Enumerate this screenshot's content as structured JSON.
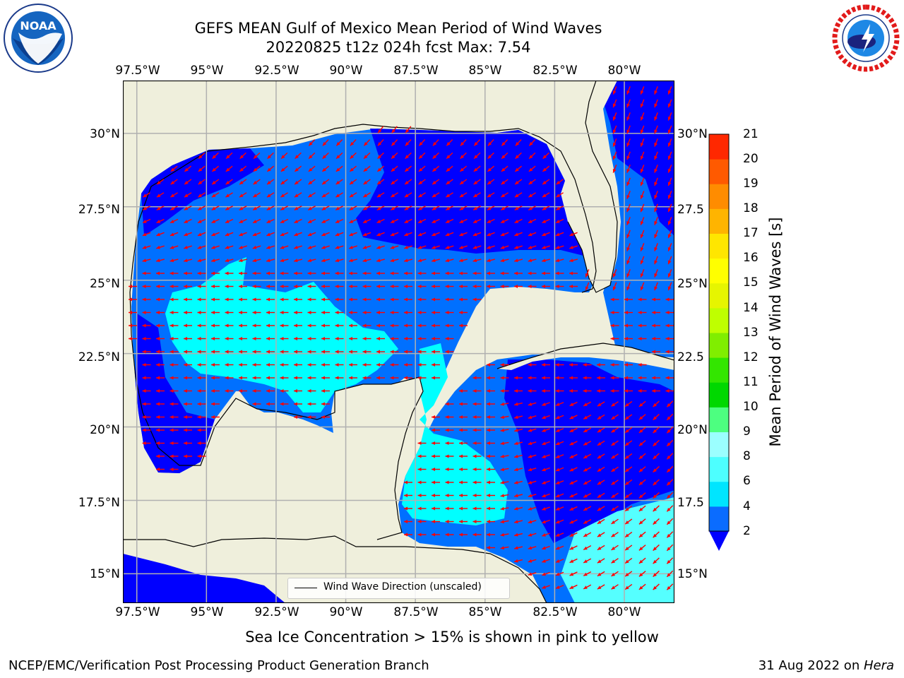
{
  "title": {
    "line1": "GEFS MEAN Gulf of Mexico Mean Period of Wind Waves",
    "line2": "20220825 t12z 024h fcst   Max: 7.54"
  },
  "logos": {
    "left": {
      "text": "NOAA",
      "ring_text": "NATIONAL OCEANIC AND ATMOSPHERIC ADMINISTRATION · U.S. DEPARTMENT OF COMMERCE",
      "icon": "noaa-logo"
    },
    "right": {
      "ring_text": "NATIONAL WEATHER SERVICE",
      "icon": "nws-logo"
    }
  },
  "axes": {
    "lon_ticks": [
      "97.5°W",
      "95°W",
      "92.5°W",
      "90°W",
      "87.5°W",
      "85°W",
      "82.5°W",
      "80°W"
    ],
    "lon_values": [
      -97.5,
      -95,
      -92.5,
      -90,
      -87.5,
      -85,
      -82.5,
      -80
    ],
    "lat_ticks_left": [
      "30°N",
      "27.5°N",
      "25°N",
      "22.5°N",
      "20°N",
      "17.5°N",
      "15°N"
    ],
    "lat_ticks_right": [
      "30°N",
      "27.5",
      "25°N",
      "22.5",
      "20°N",
      "17.5",
      "15°N"
    ],
    "lat_values": [
      30,
      27.5,
      25,
      22.5,
      20,
      17.5,
      15
    ],
    "lon_range": [
      -98,
      -78.2
    ],
    "lat_range": [
      14,
      31.8
    ],
    "grid": true
  },
  "colorbar": {
    "label": "Mean Period of Wind Waves [s]",
    "ticks": [
      "21",
      "20",
      "19",
      "18",
      "17",
      "16",
      "15",
      "14",
      "13",
      "12",
      "11",
      "10",
      "9",
      "8",
      "6",
      "4",
      "2"
    ],
    "levels": [
      2,
      4,
      6,
      8,
      9,
      10,
      11,
      12,
      13,
      14,
      15,
      16,
      17,
      18,
      19,
      20,
      21
    ],
    "colors": [
      "#0a6cff",
      "#00e5ff",
      "#4dffff",
      "#9bffff",
      "#4dff80",
      "#00d800",
      "#33e600",
      "#80ee00",
      "#bfff00",
      "#e6f500",
      "#ffff00",
      "#ffe600",
      "#ffb400",
      "#ff8c00",
      "#ff5a00",
      "#ff2800"
    ],
    "under_color": "#0000ff",
    "extend": "min"
  },
  "map_colors": {
    "land": "#efefdc",
    "coast": "#000000",
    "grid": "#b0b0b0",
    "arrow": "#ff0000",
    "level_2_4": "#0070ff",
    "level_under_2": "#0000ff",
    "level_4_6": "#00ffff",
    "level_6_8": "#55ffff"
  },
  "legend": {
    "label": "Wind Wave Direction (unscaled)"
  },
  "caption": "Sea Ice Concentration > 15% is shown in pink to yellow",
  "footer": {
    "left": "NCEP/EMC/Verification Post Processing Product Generation Branch",
    "right_date": "31 Aug 2022 on ",
    "right_host": "Hera"
  }
}
